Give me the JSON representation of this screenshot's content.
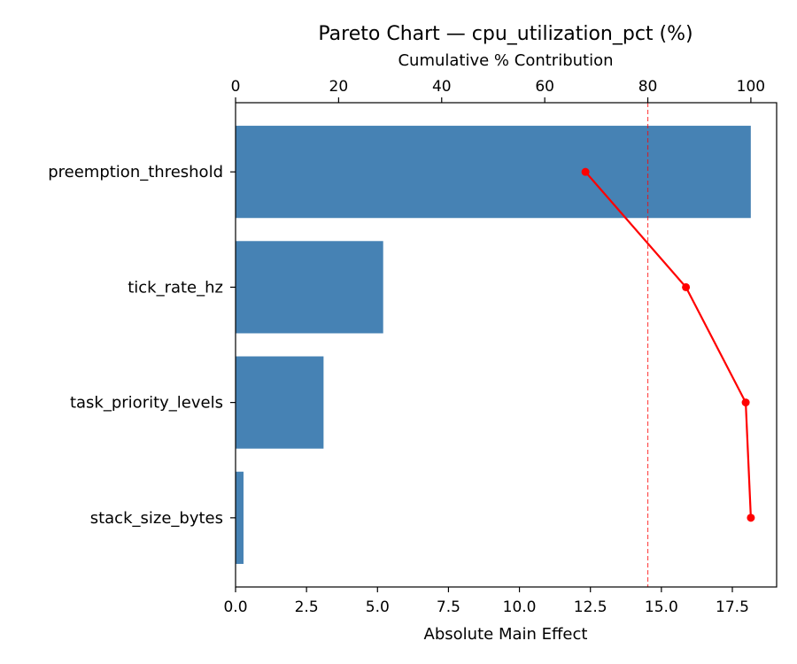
{
  "chart_data": {
    "type": "bar",
    "orientation": "horizontal",
    "title": "Pareto Chart — cpu_utilization_pct (%)",
    "xlabel": "Absolute Main Effect",
    "x2label": "Cumulative % Contribution",
    "categories": [
      "preemption_threshold",
      "tick_rate_hz",
      "task_priority_levels",
      "stack_size_bytes"
    ],
    "values": [
      18.15,
      5.2,
      3.1,
      0.28
    ],
    "cumulative_pct": [
      67.9,
      87.4,
      99.0,
      100.0
    ],
    "threshold_pct": 80,
    "xlim": [
      0,
      19.06
    ],
    "x2lim": [
      0,
      105
    ],
    "xticks": [
      "0.0",
      "2.5",
      "5.0",
      "7.5",
      "10.0",
      "12.5",
      "15.0",
      "17.5"
    ],
    "xtick_values": [
      0,
      2.5,
      5,
      7.5,
      10,
      12.5,
      15,
      17.5
    ],
    "x2ticks": [
      "0",
      "20",
      "40",
      "60",
      "80",
      "100"
    ],
    "x2tick_values": [
      0,
      20,
      40,
      60,
      80,
      100
    ],
    "grid": false,
    "colors": {
      "bar": "#4682b4",
      "cumulative_line": "#ff0000",
      "threshold_line": "#ff0000"
    }
  }
}
